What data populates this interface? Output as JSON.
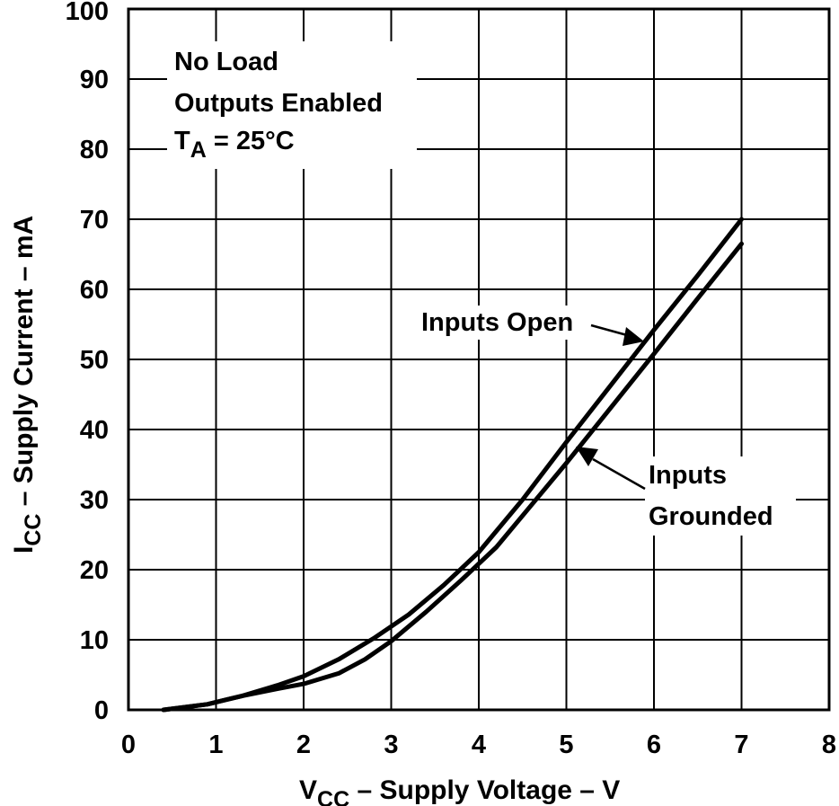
{
  "chart_data": {
    "type": "line",
    "xlabel": {
      "main": "V",
      "sub": "CC",
      "rest": " – Supply Voltage – V"
    },
    "ylabel": {
      "main": "I",
      "sub": "CC",
      "rest": " – Supply Current – mA"
    },
    "xlim": [
      0,
      8
    ],
    "ylim": [
      0,
      100
    ],
    "x_ticks": [
      "0",
      "1",
      "2",
      "3",
      "4",
      "5",
      "6",
      "7",
      "8"
    ],
    "y_ticks": [
      "0",
      "10",
      "20",
      "30",
      "40",
      "50",
      "60",
      "70",
      "80",
      "90",
      "100"
    ],
    "grid": true,
    "conditions": {
      "line1": "No Load",
      "line2": "Outputs Enabled",
      "line3_main": "T",
      "line3_sub": "A",
      "line3_rest": " = 25°C"
    },
    "series": [
      {
        "name": "Inputs Open",
        "label_lines": [
          "Inputs Open"
        ],
        "x": [
          0.4,
          0.9,
          1.3,
          1.7,
          2.0,
          2.4,
          2.8,
          3.2,
          3.6,
          4.0,
          4.5,
          5.0,
          5.5,
          6.0,
          6.5,
          7.0
        ],
        "y": [
          0,
          0.8,
          2.0,
          3.5,
          4.8,
          7.2,
          10.2,
          13.6,
          17.8,
          22.5,
          30.0,
          38.2,
          46.2,
          54.2,
          62.0,
          70.0
        ]
      },
      {
        "name": "Inputs Grounded",
        "label_lines": [
          "Inputs",
          "Grounded"
        ],
        "x": [
          0.4,
          0.9,
          1.3,
          1.7,
          2.0,
          2.4,
          2.7,
          3.0,
          3.4,
          3.8,
          4.2,
          4.6,
          5.0,
          5.5,
          6.0,
          6.5,
          7.0
        ],
        "y": [
          0,
          0.8,
          2.0,
          3.0,
          3.7,
          5.2,
          7.2,
          9.8,
          14.0,
          18.5,
          23.2,
          29.2,
          35.2,
          43.0,
          50.8,
          58.7,
          66.5
        ]
      }
    ]
  }
}
